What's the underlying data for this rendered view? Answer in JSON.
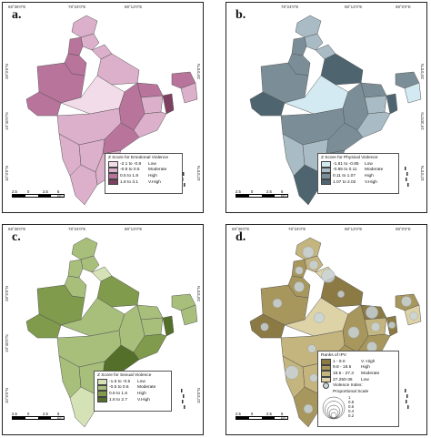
{
  "ticks": {
    "lon": [
      "68°36'0\"E",
      "78°24'0\"E",
      "88°12'0\"E",
      "98°0'0\"E"
    ],
    "lon_d": [
      "68°36'0\"E",
      "78°24'0\"E",
      "88°12'0\"E",
      "98°0'0\"E"
    ],
    "lat_left": [
      "28°0'0\"N",
      "19°30'0\"N",
      "10°0'0\"N"
    ],
    "lat_right": [
      "28°0'0\"N",
      "19°30'0\"N",
      "10°0'0\"N"
    ],
    "lat_right_b": [
      "28°0'0\"N",
      "19°30'0\"N",
      "10°0'0\"N"
    ]
  },
  "scale_labels": [
    "2.5",
    "0",
    "2.5",
    "5 km"
  ],
  "panels": [
    {
      "letter": "a.",
      "legend_title": "Z Score for Emotional Violence",
      "classes": [
        {
          "range": "-2.1 to -0.8",
          "label": "Low",
          "color": "#f3dcea"
        },
        {
          "range": "-0.8 to 0.5",
          "label": "Moderate",
          "color": "#dcb0cb"
        },
        {
          "range": "0.5 to 1.8",
          "label": "High",
          "color": "#b9749c"
        },
        {
          "range": "1.8 to 3.1",
          "label": "V.High",
          "color": "#7d4060"
        }
      ]
    },
    {
      "letter": "b.",
      "legend_title": "Z Score for Physical Violence",
      "classes": [
        {
          "range": "-1.81 to -0.85",
          "label": "Low",
          "color": "#d4eaf2"
        },
        {
          "range": "-0.85 to 0.11",
          "label": "Moderate",
          "color": "#a9bcc5"
        },
        {
          "range": "0.11 to 1.07",
          "label": "High",
          "color": "#7b8e98"
        },
        {
          "range": "1.07 to 2.02",
          "label": "V.High",
          "color": "#4e6570"
        }
      ]
    },
    {
      "letter": "c.",
      "legend_title": "Z Score for Sexual Violence",
      "classes": [
        {
          "range": "-1.6 to -0.5",
          "label": "Low",
          "color": "#d4e2b6"
        },
        {
          "range": "-0.5 to 0.6",
          "label": "Moderate",
          "color": "#a8bf7c"
        },
        {
          "range": "0.6 to 1.6",
          "label": "High",
          "color": "#7f9b4b"
        },
        {
          "range": "1.6 to 2.7",
          "label": "V.High",
          "color": "#546f2a"
        }
      ]
    },
    {
      "letter": "d.",
      "legend_title": "Ranks of IPV",
      "classes": [
        {
          "range": "1 - 9.0",
          "label": "V. High",
          "color": "#8b7a44"
        },
        {
          "range": "9.8 - 18.5",
          "label": "High",
          "color": "#a8975c"
        },
        {
          "range": "18.5 - 27.3",
          "label": "Moderate",
          "color": "#c4b57e"
        },
        {
          "range": "27.250-36",
          "label": "Low",
          "color": "#ddd3a6"
        }
      ],
      "index_title": "Violence Index:",
      "index_subtitle": "Proportional Scale",
      "index_values": [
        "1",
        "0.8",
        "0.6",
        "0.4",
        "0.2"
      ],
      "bubble_color": "#c9d6de"
    }
  ],
  "state_fills": {
    "a": [
      "#dcb0cb",
      "#dcb0cb",
      "#b9749c",
      "#dcb0cb",
      "#b9749c",
      "#dcb0cb",
      "#b9749c",
      "#b9749c",
      "#b9749c",
      "#f3dcea",
      "#dcb0cb",
      "#b9749c",
      "#7d4060",
      "#dcb0cb",
      "#dcb0cb",
      "#b9749c",
      "#dcb0cb",
      "#dcb0cb",
      "#dcb0cb",
      "#dcb0cb",
      "#b9749c",
      "#dcb0cb"
    ],
    "b": [
      "#a9bcc5",
      "#a9bcc5",
      "#7b8e98",
      "#a9bcc5",
      "#7b8e98",
      "#4e6570",
      "#7b8e98",
      "#7b8e98",
      "#4e6570",
      "#d4eaf2",
      "#a9bcc5",
      "#7b8e98",
      "#4e6570",
      "#a9bcc5",
      "#7b8e98",
      "#7b8e98",
      "#a9bcc5",
      "#a9bcc5",
      "#7b8e98",
      "#4e6570",
      "#7b8e98",
      "#d4eaf2"
    ],
    "c": [
      "#a8bf7c",
      "#a8bf7c",
      "#a8bf7c",
      "#d4e2b6",
      "#a8bf7c",
      "#7f9b4b",
      "#7f9b4b",
      "#a8bf7c",
      "#7f9b4b",
      "#a8bf7c",
      "#a8bf7c",
      "#a8bf7c",
      "#546f2a",
      "#7f9b4b",
      "#a8bf7c",
      "#546f2a",
      "#a8bf7c",
      "#a8bf7c",
      "#a8bf7c",
      "#d4e2b6",
      "#a8bf7c",
      "#a8bf7c"
    ],
    "d": [
      "#c4b57e",
      "#c4b57e",
      "#a8975c",
      "#ddd3a6",
      "#a8975c",
      "#8b7a44",
      "#a8975c",
      "#8b7a44",
      "#8b7a44",
      "#ddd3a6",
      "#c4b57e",
      "#a8975c",
      "#8b7a44",
      "#a8975c",
      "#c4b57e",
      "#a8975c",
      "#c4b57e",
      "#c4b57e",
      "#a8975c",
      "#a8975c",
      "#a8975c",
      "#ddd3a6"
    ]
  },
  "bubbles_d": [
    0.7,
    0.5,
    0.4,
    0.9,
    0.6,
    0.3,
    0.5,
    0.8,
    0.4,
    0.6,
    0.5,
    0.7,
    0.3,
    0.6,
    0.4,
    0.5,
    0.9,
    0.4,
    0.3,
    0.5,
    0.6,
    0.4
  ]
}
